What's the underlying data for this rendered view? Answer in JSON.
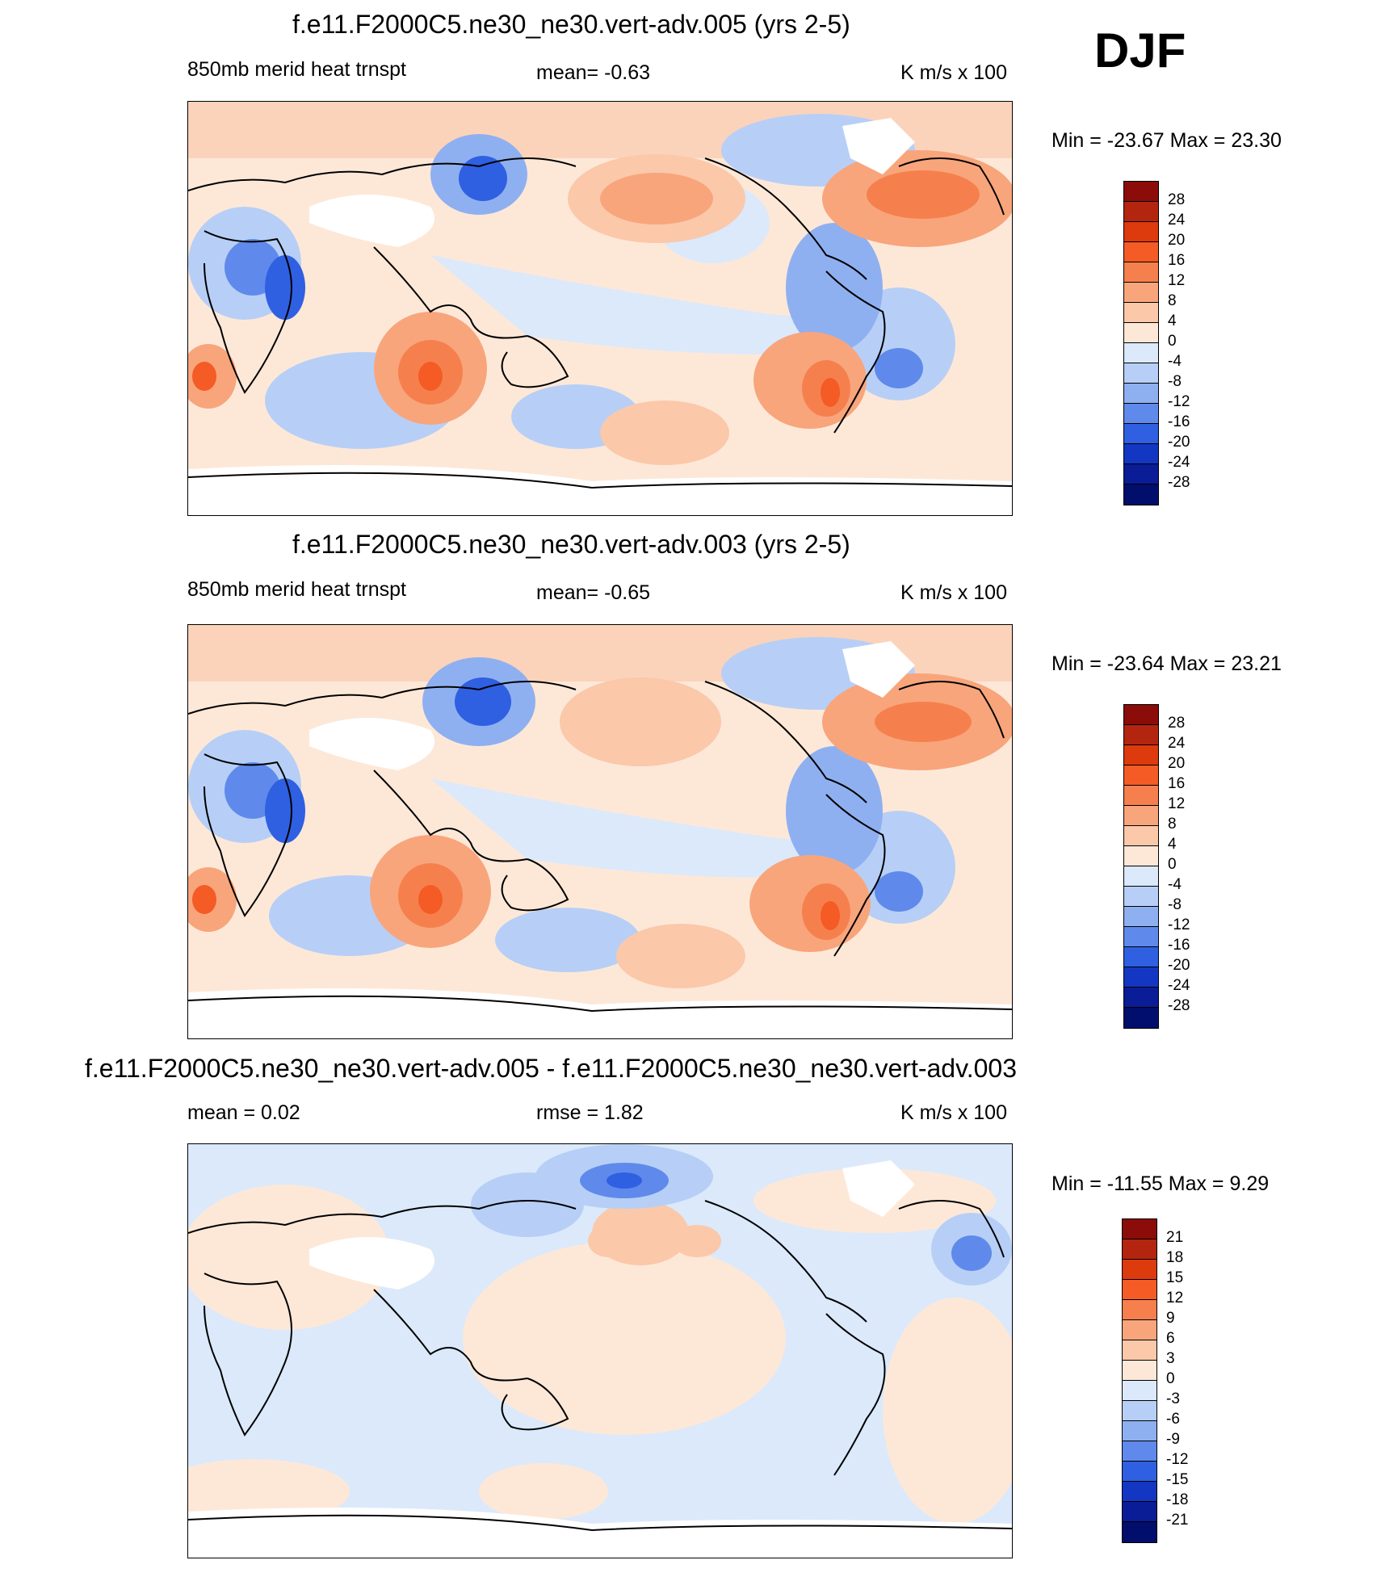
{
  "season": "DJF",
  "panels": [
    {
      "title": "f.e11.F2000C5.ne30_ne30.vert-adv.005 (yrs 2-5)",
      "left_label": "850mb merid heat trnspt",
      "center_label": "mean=  -0.63",
      "right_label": "K m/s x 100",
      "min_max": "Min = -23.67 Max =  23.30",
      "colorbar": {
        "levels": [
          "28",
          "24",
          "20",
          "16",
          "12",
          "8",
          "4",
          "0",
          "-4",
          "-8",
          "-12",
          "-16",
          "-20",
          "-24",
          "-28"
        ],
        "colors": [
          "#8b0c08",
          "#b42510",
          "#dd3a0d",
          "#f45b25",
          "#f6804d",
          "#f8a57c",
          "#fbc8aa",
          "#fde8d8",
          "#dbe9fb",
          "#b7cff6",
          "#8fb0f0",
          "#5f8aeb",
          "#2f60e2",
          "#1337c3",
          "#0a1c96",
          "#020e6b"
        ]
      }
    },
    {
      "title": "f.e11.F2000C5.ne30_ne30.vert-adv.003 (yrs 2-5)",
      "left_label": "850mb merid heat trnspt",
      "center_label": "mean=  -0.65",
      "right_label": "K m/s x 100",
      "min_max": "Min = -23.64 Max =  23.21",
      "colorbar": {
        "levels": [
          "28",
          "24",
          "20",
          "16",
          "12",
          "8",
          "4",
          "0",
          "-4",
          "-8",
          "-12",
          "-16",
          "-20",
          "-24",
          "-28"
        ],
        "colors": [
          "#8b0c08",
          "#b42510",
          "#dd3a0d",
          "#f45b25",
          "#f6804d",
          "#f8a57c",
          "#fbc8aa",
          "#fde8d8",
          "#dbe9fb",
          "#b7cff6",
          "#8fb0f0",
          "#5f8aeb",
          "#2f60e2",
          "#1337c3",
          "#0a1c96",
          "#020e6b"
        ]
      }
    },
    {
      "title": "f.e11.F2000C5.ne30_ne30.vert-adv.005 - f.e11.F2000C5.ne30_ne30.vert-adv.003",
      "left_label": "mean =   0.02",
      "center_label": "rmse =   1.82",
      "right_label": "K m/s x 100",
      "min_max": "Min = -11.55 Max =   9.29",
      "colorbar": {
        "levels": [
          "21",
          "18",
          "15",
          "12",
          "9",
          "6",
          "3",
          "0",
          "-3",
          "-6",
          "-9",
          "-12",
          "-15",
          "-18",
          "-21"
        ],
        "colors": [
          "#8b0c08",
          "#b42510",
          "#dd3a0d",
          "#f45b25",
          "#f6804d",
          "#f8a57c",
          "#fbc8aa",
          "#fde8d8",
          "#dbe9fb",
          "#b7cff6",
          "#8fb0f0",
          "#5f8aeb",
          "#2f60e2",
          "#1337c3",
          "#0a1c96",
          "#020e6b"
        ]
      }
    }
  ]
}
